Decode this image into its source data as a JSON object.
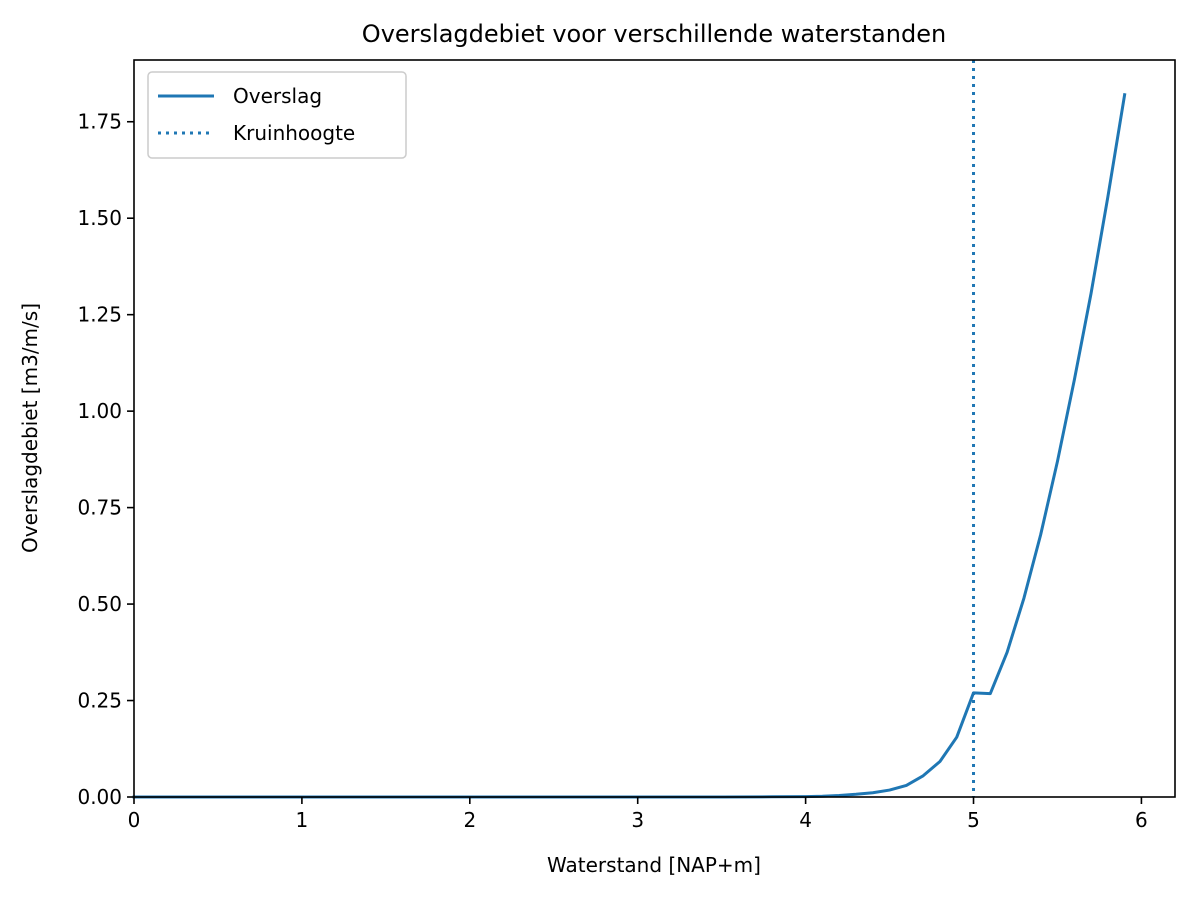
{
  "chart_data": {
    "type": "line",
    "title": "Overslagdebiet voor verschillende waterstanden",
    "xlabel": "Waterstand [NAP+m]",
    "ylabel": "Overslagdebiet [m3/m/s]",
    "xlim": [
      0,
      6.2
    ],
    "ylim": [
      0,
      1.91
    ],
    "x_ticks": [
      0,
      1,
      2,
      3,
      4,
      5,
      6
    ],
    "x_tick_labels": [
      "0",
      "1",
      "2",
      "3",
      "4",
      "5",
      "6"
    ],
    "y_ticks": [
      0,
      0.25,
      0.5,
      0.75,
      1.0,
      1.25,
      1.5,
      1.75
    ],
    "y_tick_labels": [
      "0.00",
      "0.25",
      "0.50",
      "0.75",
      "1.00",
      "1.25",
      "1.50",
      "1.75"
    ],
    "grid": false,
    "legend_position": "top-left",
    "series": [
      {
        "name": "Overslag",
        "style": "solid",
        "color": "#1f77b4",
        "x": [
          0,
          0.5,
          1.0,
          1.5,
          2.0,
          2.5,
          3.0,
          3.5,
          3.8,
          4.0,
          4.1,
          4.2,
          4.3,
          4.4,
          4.5,
          4.6,
          4.7,
          4.8,
          4.9,
          5.0,
          5.1,
          5.2,
          5.3,
          5.4,
          5.5,
          5.6,
          5.7,
          5.8,
          5.9
        ],
        "y": [
          0,
          0,
          0,
          0,
          0,
          0,
          0,
          0,
          0.0005,
          0.001,
          0.002,
          0.004,
          0.007,
          0.011,
          0.018,
          0.03,
          0.055,
          0.092,
          0.155,
          0.27,
          0.268,
          0.375,
          0.515,
          0.68,
          0.87,
          1.08,
          1.305,
          1.555,
          1.82
        ]
      }
    ],
    "vlines": [
      {
        "name": "Kruinhoogte",
        "x": 5.0,
        "style": "dotted",
        "color": "#1f77b4"
      }
    ]
  }
}
